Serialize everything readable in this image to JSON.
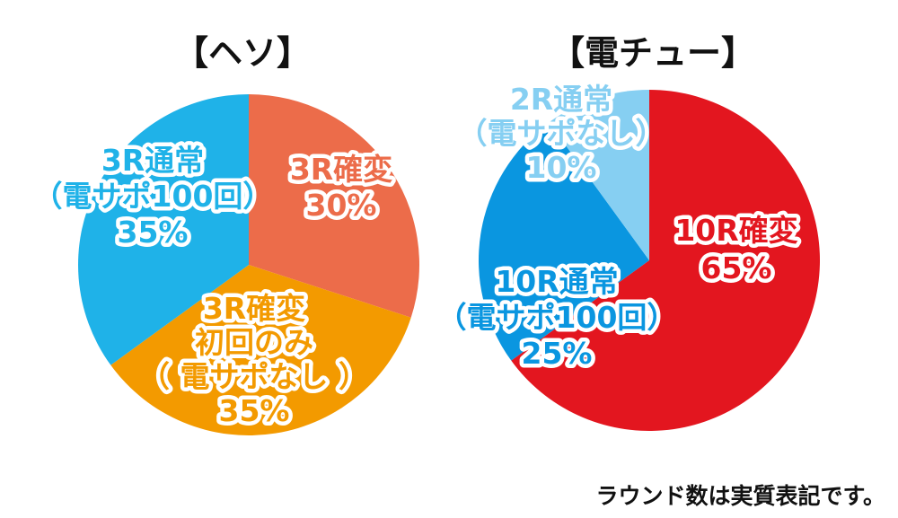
{
  "chart_data": [
    {
      "type": "pie",
      "title": "【ヘソ】",
      "slices": [
        {
          "label": "3R確変",
          "value": 30,
          "color": "#ec6c4a",
          "text": [
            "3R確変",
            "30%"
          ],
          "text_color": "#ec6c4a"
        },
        {
          "label": "3R確変 初回のみ 電サポなし",
          "value": 35,
          "color": "#f39a00",
          "text": [
            "3R確変",
            "初回のみ",
            "（ 電サポなし ）",
            "35%"
          ],
          "text_color": "#f39a00"
        },
        {
          "label": "3R通常（電サポ100回）",
          "value": 35,
          "color": "#1fb2e8",
          "text": [
            "3R通常",
            "（電サポ100回）",
            "35%"
          ],
          "text_color": "#1fb2e8"
        }
      ]
    },
    {
      "type": "pie",
      "title": "【電チュー】",
      "slices": [
        {
          "label": "10R確変",
          "value": 65,
          "color": "#e3161f",
          "text": [
            "10R確変",
            "65%"
          ],
          "text_color": "#e3161f"
        },
        {
          "label": "10R通常（電サポ100回）",
          "value": 25,
          "color": "#0a96e0",
          "text": [
            "10R通常",
            "（電サポ100回）",
            "25%"
          ],
          "text_color": "#0a96e0"
        },
        {
          "label": "2R通常（電サポなし）",
          "value": 10,
          "color": "#86cff2",
          "text": [
            "2R通常",
            "（電サポなし）",
            "10%"
          ],
          "text_color": "#86cff2"
        }
      ]
    }
  ],
  "footnote": "ラウンド数は実質表記です。"
}
